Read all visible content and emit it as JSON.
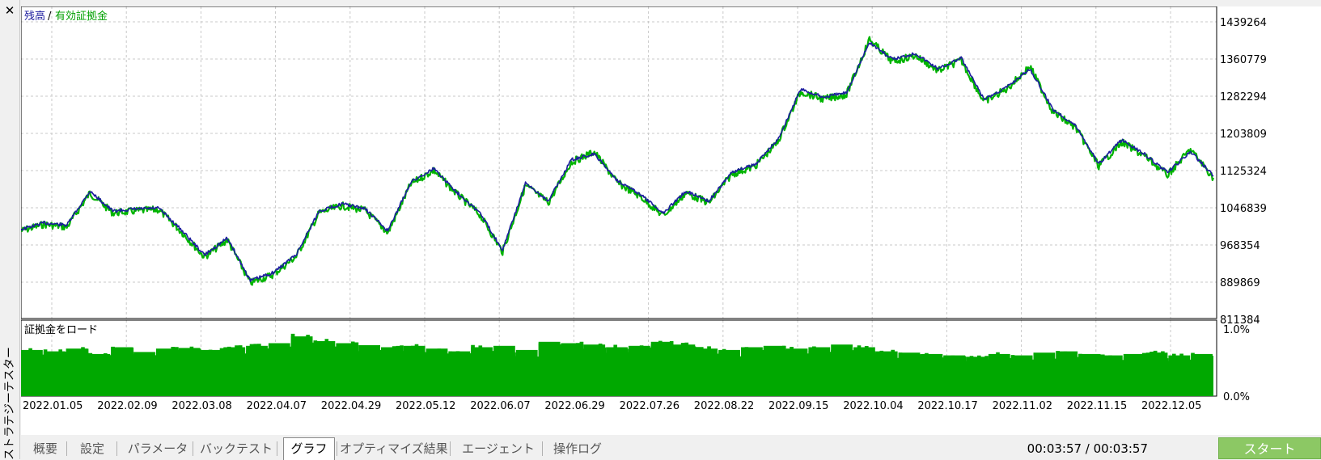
{
  "window": {
    "close_icon": "close-icon",
    "title_vertical": "ストラテジーテスター"
  },
  "legend": {
    "balance": "残高",
    "separator": "/",
    "equity": "有効証拠金"
  },
  "sub_panel_title": "証拠金をロード",
  "colors": {
    "balance": "#1c1c9e",
    "equity": "#00b400",
    "load": "#00a800",
    "start_button": "#8cc864"
  },
  "chart_data": [
    {
      "type": "line",
      "x_dates": [
        "2022.01.05",
        "2022.01.12",
        "2022.01.20",
        "2022.01.27",
        "2022.02.02",
        "2022.02.09",
        "2022.02.15",
        "2022.02.22",
        "2022.03.01",
        "2022.03.08",
        "2022.03.15",
        "2022.03.21",
        "2022.03.28",
        "2022.04.07",
        "2022.04.14",
        "2022.04.21",
        "2022.04.29",
        "2022.05.05",
        "2022.05.12",
        "2022.05.19",
        "2022.05.26",
        "2022.06.01",
        "2022.06.07",
        "2022.06.14",
        "2022.06.22",
        "2022.06.29",
        "2022.07.05",
        "2022.07.13",
        "2022.07.26",
        "2022.08.02",
        "2022.08.09",
        "2022.08.22",
        "2022.08.29",
        "2022.09.05",
        "2022.09.15",
        "2022.09.21",
        "2022.09.28",
        "2022.10.04",
        "2022.10.06",
        "2022.10.10",
        "2022.10.13",
        "2022.10.17",
        "2022.10.20",
        "2022.10.26",
        "2022.11.02",
        "2022.11.06",
        "2022.11.10",
        "2022.11.15",
        "2022.11.21",
        "2022.11.28",
        "2022.12.05",
        "2022.12.09",
        "2022.12.14"
      ],
      "series": [
        {
          "name": "残高",
          "values": [
            1001000,
            1015000,
            1010000,
            1082000,
            1040000,
            1044000,
            1046000,
            1000000,
            947000,
            983000,
            893000,
            910000,
            948000,
            1040000,
            1055000,
            1045000,
            998000,
            1101000,
            1130000,
            1080000,
            1037000,
            958000,
            1098000,
            1062000,
            1148000,
            1160000,
            1105000,
            1075000,
            1036000,
            1082000,
            1061000,
            1122000,
            1138000,
            1190000,
            1297000,
            1280000,
            1290000,
            1396000,
            1360000,
            1373000,
            1340000,
            1363000,
            1275000,
            1302000,
            1340000,
            1255000,
            1220000,
            1140000,
            1190000,
            1160000,
            1121000,
            1165000,
            1115000
          ]
        },
        {
          "name": "有効証拠金",
          "values": [
            998000,
            1012000,
            1006000,
            1078000,
            1036000,
            1040000,
            1043000,
            996000,
            943000,
            979000,
            888000,
            906000,
            944000,
            1036000,
            1051000,
            1041000,
            994000,
            1097000,
            1126000,
            1076000,
            1033000,
            954000,
            1094000,
            1058000,
            1143000,
            1165000,
            1100000,
            1071000,
            1030000,
            1078000,
            1057000,
            1118000,
            1134000,
            1186000,
            1292000,
            1276000,
            1286000,
            1402000,
            1355000,
            1368000,
            1336000,
            1358000,
            1270000,
            1298000,
            1345000,
            1250000,
            1215000,
            1135000,
            1185000,
            1156000,
            1116000,
            1170000,
            1110000
          ]
        }
      ],
      "y_ticks": [
        "1439264",
        "1360779",
        "1282294",
        "1203809",
        "1125324",
        "1046839",
        "968354",
        "889869",
        "811384"
      ],
      "ylim": [
        811384,
        1459000
      ],
      "grid": true,
      "legend": "top-left"
    },
    {
      "type": "bar",
      "title": "証拠金をロード",
      "y_ticks": [
        "1.0%",
        "0.0%"
      ],
      "ylim": [
        0,
        1.0
      ],
      "x_ticks": [
        "2022.01.05",
        "2022.02.09",
        "2022.03.08",
        "2022.04.07",
        "2022.04.29",
        "2022.05.12",
        "2022.06.07",
        "2022.06.29",
        "2022.07.26",
        "2022.08.22",
        "2022.09.15",
        "2022.10.04",
        "2022.10.17",
        "2022.11.02",
        "2022.11.15",
        "2022.12.05"
      ],
      "values_percent": [
        0.68,
        0.66,
        0.7,
        0.62,
        0.72,
        0.65,
        0.7,
        0.71,
        0.68,
        0.72,
        0.74,
        0.78,
        0.88,
        0.81,
        0.78,
        0.75,
        0.72,
        0.74,
        0.7,
        0.66,
        0.72,
        0.74,
        0.68,
        0.8,
        0.78,
        0.76,
        0.72,
        0.74,
        0.8,
        0.76,
        0.7,
        0.68,
        0.72,
        0.74,
        0.7,
        0.72,
        0.76,
        0.72,
        0.66,
        0.64,
        0.62,
        0.6,
        0.58,
        0.62,
        0.6,
        0.64,
        0.66,
        0.62,
        0.6,
        0.62,
        0.64,
        0.6,
        0.62
      ],
      "grid": true
    }
  ],
  "tabs": [
    {
      "label": "概要"
    },
    {
      "label": "設定"
    },
    {
      "label": "パラメータ"
    },
    {
      "label": "バックテスト"
    },
    {
      "label": "グラフ"
    },
    {
      "label": "オプティマイズ結果"
    },
    {
      "label": "エージェント"
    },
    {
      "label": "操作ログ"
    }
  ],
  "active_tab": "グラフ",
  "timer": "00:03:57 / 00:03:57",
  "start_label": "スタート"
}
